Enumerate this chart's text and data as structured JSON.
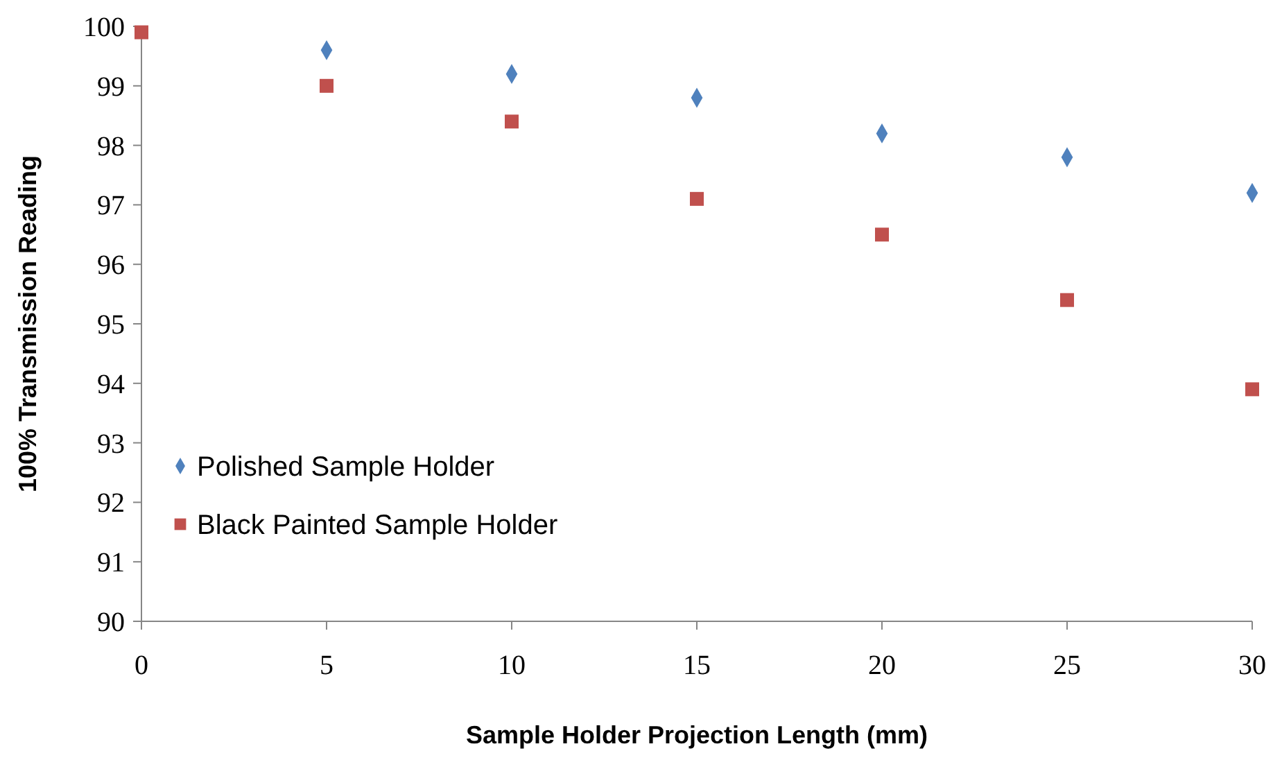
{
  "chart_data": {
    "type": "scatter",
    "xlabel": "Sample Holder Projection Length (mm)",
    "ylabel": "100% Transmission Reading",
    "x": [
      0,
      5,
      10,
      15,
      20,
      25,
      30
    ],
    "series": [
      {
        "name": "Polished Sample Holder",
        "color": "#4f81bd",
        "marker": "diamond",
        "values": [
          null,
          99.6,
          99.2,
          98.8,
          98.2,
          97.8,
          97.2
        ]
      },
      {
        "name": "Black Painted Sample Holder",
        "color": "#c0504d",
        "marker": "square",
        "values": [
          99.9,
          99.0,
          98.4,
          97.1,
          96.5,
          95.4,
          93.9
        ]
      }
    ],
    "xlim": [
      0,
      30
    ],
    "xticks": [
      0,
      5,
      10,
      15,
      20,
      25,
      30
    ],
    "ylim": [
      90,
      100
    ],
    "yticks": [
      90,
      91,
      92,
      93,
      94,
      95,
      96,
      97,
      98,
      99,
      100
    ],
    "grid": false,
    "legend": "bottom left"
  }
}
